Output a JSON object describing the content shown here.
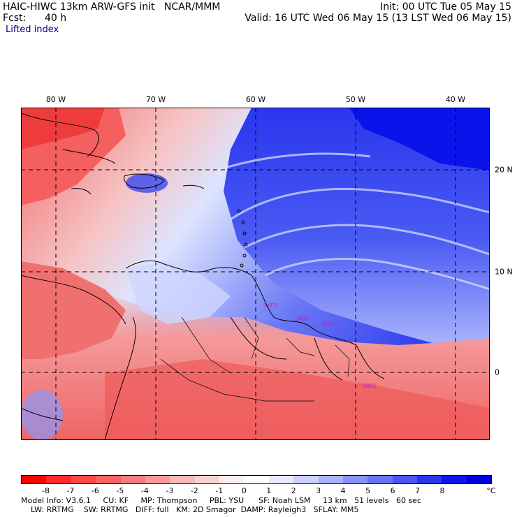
{
  "header": {
    "model_line": "HAIC-HIWC 13km ARW-GFS init   NCAR/MMM",
    "init_line": "Init: 00 UTC Tue 05 May 15",
    "fcst_label": "Fcst:",
    "fcst_value": "40 h",
    "valid_line": "Valid: 16 UTC Wed 06 May 15 (13 LST Wed 06 May 15)",
    "field_title": "Lifted index"
  },
  "axes": {
    "longitudes": [
      "80 W",
      "70 W",
      "60 W",
      "50 W",
      "40 W"
    ],
    "latitudes": [
      "20 N",
      "10 N",
      "0"
    ]
  },
  "stations": [
    "SYEH",
    "SMJP",
    "SOCA",
    "SBBE"
  ],
  "colorbar": {
    "tick_labels": [
      "-8",
      "-7",
      "-6",
      "-5",
      "-4",
      "-3",
      "-2",
      "-1",
      "0",
      "1",
      "2",
      "3",
      "4",
      "5",
      "6",
      "7",
      "8"
    ],
    "unit": "°C",
    "colors": [
      "#ff0000",
      "#ff2a2a",
      "#fe4848",
      "#f86262",
      "#f47c7c",
      "#f49a9a",
      "#f6b8b8",
      "#f8d2d2",
      "#fdeeee",
      "#ffffff",
      "#eaeaff",
      "#ccd0ff",
      "#aab2fc",
      "#8a92fa",
      "#6a74f6",
      "#4a56f2",
      "#2a36ee",
      "#0a16ea",
      "#0000e0"
    ]
  },
  "footer": {
    "line1": "Model Info: V3.6.1     CU: KF     MP: Thompson     PBL: YSU      SF: Noah LSM     13 km   51 levels   60 sec",
    "line2": "    LW: RRTMG    SW: RRTMG   DIFF: full   KM: 2D Smagor  DAMP: Rayleigh3   SFLAY: MM5"
  }
}
